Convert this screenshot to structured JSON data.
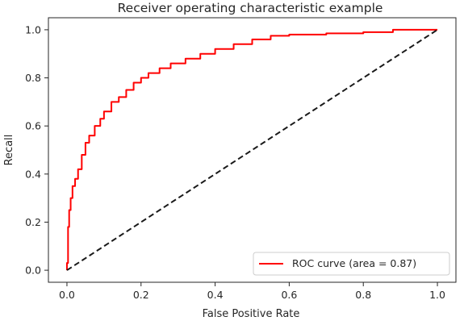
{
  "chart_data": {
    "type": "line",
    "title": "Receiver operating characteristic example",
    "xlabel": "False Positive Rate",
    "ylabel": "Recall",
    "xlim": [
      -0.05,
      1.05
    ],
    "ylim": [
      -0.05,
      1.05
    ],
    "xticks": [
      0.0,
      0.2,
      0.4,
      0.6,
      0.8,
      1.0
    ],
    "yticks": [
      0.0,
      0.2,
      0.4,
      0.6,
      0.8,
      1.0
    ],
    "xtick_labels": [
      "0.0",
      "0.2",
      "0.4",
      "0.6",
      "0.8",
      "1.0"
    ],
    "ytick_labels": [
      "0.0",
      "0.2",
      "0.4",
      "0.6",
      "0.8",
      "1.0"
    ],
    "grid": false,
    "legend_position": "lower-right",
    "series": [
      {
        "name": "ROC curve (area = 0.87)",
        "color": "#ff0000",
        "style": "solid",
        "x": [
          0.0,
          0.0,
          0.003,
          0.003,
          0.006,
          0.006,
          0.01,
          0.01,
          0.015,
          0.015,
          0.022,
          0.022,
          0.03,
          0.03,
          0.04,
          0.04,
          0.05,
          0.05,
          0.06,
          0.06,
          0.075,
          0.075,
          0.09,
          0.09,
          0.1,
          0.1,
          0.12,
          0.12,
          0.14,
          0.14,
          0.16,
          0.16,
          0.18,
          0.18,
          0.2,
          0.2,
          0.22,
          0.22,
          0.25,
          0.25,
          0.28,
          0.28,
          0.32,
          0.32,
          0.36,
          0.36,
          0.4,
          0.4,
          0.45,
          0.45,
          0.5,
          0.5,
          0.55,
          0.55,
          0.6,
          0.6,
          0.7,
          0.7,
          0.8,
          0.8,
          0.88,
          0.88,
          1.0
        ],
        "y": [
          0.0,
          0.03,
          0.03,
          0.18,
          0.18,
          0.25,
          0.25,
          0.3,
          0.3,
          0.35,
          0.35,
          0.38,
          0.38,
          0.42,
          0.42,
          0.48,
          0.48,
          0.53,
          0.53,
          0.56,
          0.56,
          0.6,
          0.6,
          0.63,
          0.63,
          0.66,
          0.66,
          0.7,
          0.7,
          0.72,
          0.72,
          0.75,
          0.75,
          0.78,
          0.78,
          0.8,
          0.8,
          0.82,
          0.82,
          0.84,
          0.84,
          0.86,
          0.86,
          0.88,
          0.88,
          0.9,
          0.9,
          0.92,
          0.92,
          0.94,
          0.94,
          0.96,
          0.96,
          0.975,
          0.975,
          0.98,
          0.98,
          0.985,
          0.985,
          0.99,
          0.99,
          1.0,
          1.0
        ]
      },
      {
        "color": "#1a1a1a",
        "style": "dashed",
        "x": [
          0.0,
          1.0
        ],
        "y": [
          0.0,
          1.0
        ]
      }
    ]
  }
}
